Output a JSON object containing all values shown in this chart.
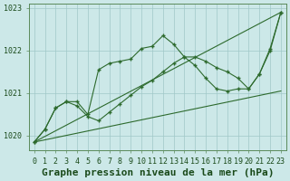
{
  "title": "Graphe pression niveau de la mer (hPa)",
  "series": [
    {
      "label": "line1_straight",
      "x": [
        0,
        3,
        23
      ],
      "y": [
        1019.85,
        1020.8,
        1022.9
      ],
      "has_markers": false
    },
    {
      "label": "line2_straight",
      "x": [
        0,
        3,
        23
      ],
      "y": [
        1019.85,
        1020.8,
        1022.9
      ],
      "has_markers": false
    },
    {
      "label": "line3_peaked",
      "x": [
        0,
        1,
        2,
        3,
        4,
        5,
        6,
        7,
        8,
        9,
        10,
        11,
        12,
        13,
        14,
        15,
        16,
        17,
        18,
        19,
        20,
        21,
        22,
        23
      ],
      "y": [
        1019.85,
        1020.15,
        1020.65,
        1020.8,
        1020.8,
        1020.5,
        1021.55,
        1021.7,
        1021.75,
        1021.8,
        1022.05,
        1022.1,
        1022.35,
        1022.15,
        1021.85,
        1021.65,
        1021.35,
        1021.1,
        1021.05,
        1021.1,
        1021.1,
        1021.45,
        1022.05,
        1022.9
      ],
      "has_markers": true
    },
    {
      "label": "line4_lower",
      "x": [
        0,
        1,
        2,
        3,
        4,
        5,
        6,
        7,
        8,
        9,
        10,
        11,
        12,
        13,
        14,
        15,
        16,
        17,
        18,
        19,
        20,
        21,
        22,
        23
      ],
      "y": [
        1019.85,
        1020.15,
        1020.65,
        1020.8,
        1020.7,
        1020.45,
        1020.35,
        1020.55,
        1020.75,
        1020.95,
        1021.15,
        1021.3,
        1021.5,
        1021.7,
        1021.85,
        1021.85,
        1021.75,
        1021.6,
        1021.5,
        1021.35,
        1021.1,
        1021.45,
        1022.0,
        1022.9
      ],
      "has_markers": true
    }
  ],
  "ylim": [
    1019.65,
    1023.1
  ],
  "yticks": [
    1020,
    1021,
    1022,
    1023
  ],
  "xticks": [
    0,
    1,
    2,
    3,
    4,
    5,
    6,
    7,
    8,
    9,
    10,
    11,
    12,
    13,
    14,
    15,
    16,
    17,
    18,
    19,
    20,
    21,
    22,
    23
  ],
  "line_color": "#2d6a2d",
  "marker_color": "#2d6a2d",
  "bg_color": "#cce8e8",
  "grid_color": "#a0c8c8",
  "title_color": "#1a4a1a",
  "title_fontsize": 8,
  "tick_fontsize": 6
}
